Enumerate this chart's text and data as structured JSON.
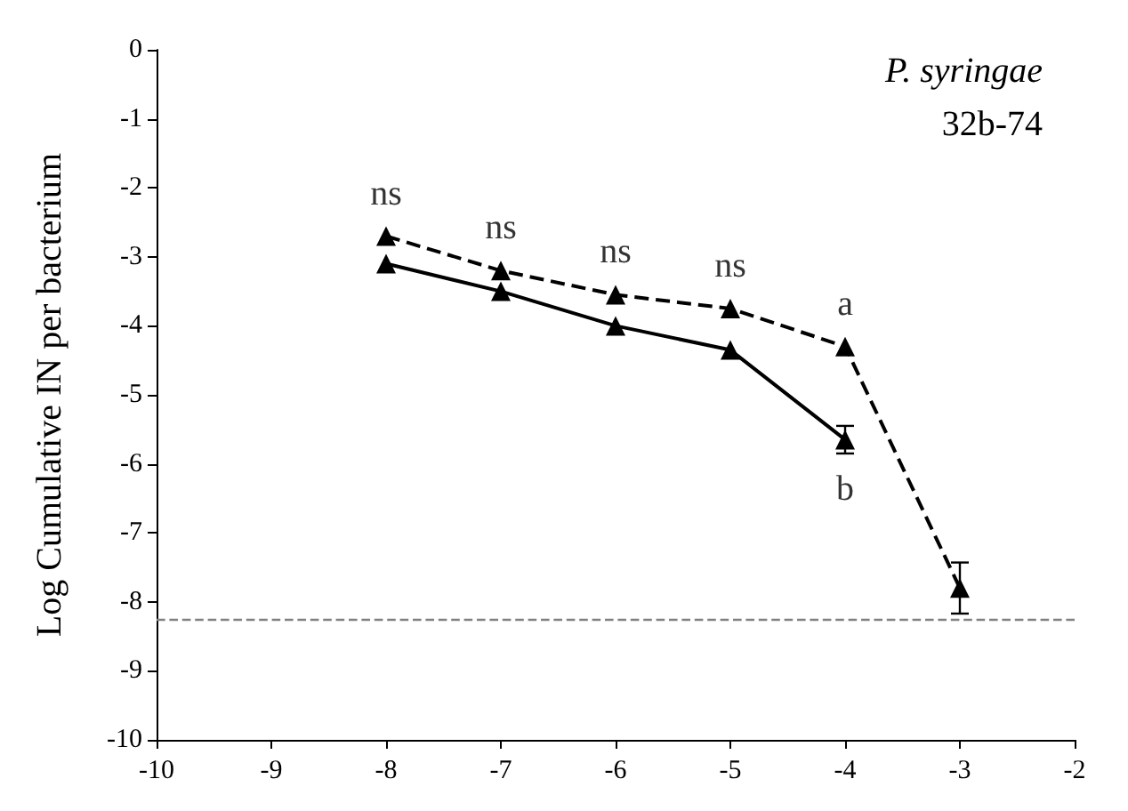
{
  "chart_data": {
    "type": "line",
    "ylabel": "Log Cumulative IN per bacterium",
    "x": [
      -8,
      -7,
      -6,
      -5,
      -4,
      -3
    ],
    "series": [
      {
        "color": "#000000",
        "line_style": "dashed",
        "values": [
          -2.7,
          -3.2,
          -3.55,
          -3.75,
          -4.3,
          -7.8
        ],
        "errors": [
          null,
          null,
          null,
          null,
          null,
          0.37
        ]
      },
      {
        "color": "#000000",
        "line_style": "solid",
        "values": [
          -3.1,
          -3.5,
          -4.0,
          -4.35,
          -5.65,
          null
        ],
        "errors": [
          null,
          null,
          null,
          null,
          0.2,
          null
        ]
      }
    ],
    "xlim": [
      -10,
      -2
    ],
    "xticks": [
      -10,
      -9,
      -8,
      -7,
      -6,
      -5,
      -4,
      -3,
      -2
    ],
    "ylim": [
      -10,
      0
    ],
    "yticks": [
      0,
      -1,
      -2,
      -3,
      -4,
      -5,
      -6,
      -7,
      -8,
      -9,
      -10
    ],
    "grid": false,
    "marker": "triangle",
    "ref_lines": [
      {
        "axis": "y",
        "value": -8.25,
        "color": "#808080",
        "line_style": "dashed"
      }
    ],
    "annotations": [
      "P. syringae",
      "32b-74",
      {
        "text": "ns",
        "x": -8,
        "y": -2.7
      },
      {
        "text": "ns",
        "x": -7,
        "y": -3.2
      },
      {
        "text": "ns",
        "x": -6,
        "y": -3.55
      },
      {
        "text": "ns",
        "x": -5,
        "y": -3.75
      },
      {
        "text": "a",
        "x": -4,
        "y": -4.3
      },
      {
        "text": "b",
        "x": -4,
        "y": -5.65
      }
    ]
  }
}
